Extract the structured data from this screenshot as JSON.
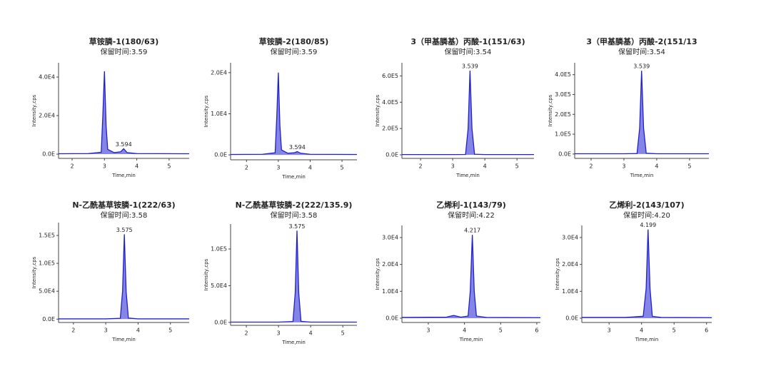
{
  "chart_data": [
    {
      "type": "area",
      "title": "草铵膦-1(180/63)",
      "subtitle": "保留时间:3.59",
      "x_label": "Time,min",
      "y_label": "Intensity,cps",
      "color": "#2020d0",
      "x": [
        1.58,
        2.5,
        2.9,
        2.95,
        3.0,
        3.05,
        3.1,
        3.3,
        3.5,
        3.594,
        3.7,
        4.0,
        5.62
      ],
      "values": [
        200,
        300,
        1000,
        20000,
        43000,
        15000,
        2500,
        800,
        1200,
        2800,
        800,
        300,
        200
      ],
      "annotations": [
        {
          "x": 3.594,
          "label": "3.594"
        }
      ],
      "xlim": [
        1.58,
        5.62
      ],
      "xticks": [
        2,
        3,
        4,
        5
      ],
      "ylim": [
        -2200,
        47400
      ],
      "yticks": [
        {
          "value": 0,
          "label": "0.0E"
        },
        {
          "value": 20000,
          "label": "2.0E4"
        },
        {
          "value": 40000,
          "label": "4.0E4"
        }
      ]
    },
    {
      "type": "area",
      "title": "草铵膦-2(180/85)",
      "subtitle": "保留时间:3.59",
      "x_label": "Time,min",
      "y_label": "Intensity,cps",
      "color": "#2020d0",
      "x": [
        1.5,
        2.5,
        2.9,
        2.95,
        3.0,
        3.05,
        3.1,
        3.3,
        3.5,
        3.594,
        3.7,
        4.0,
        5.47
      ],
      "values": [
        100,
        150,
        500,
        9000,
        20000,
        7000,
        1200,
        400,
        500,
        800,
        400,
        150,
        100
      ],
      "annotations": [
        {
          "x": 3.594,
          "label": "3.594"
        }
      ],
      "xlim": [
        1.5,
        5.47
      ],
      "xticks": [
        2,
        3,
        4,
        5
      ],
      "ylim": [
        -1200,
        22400
      ],
      "yticks": [
        {
          "value": 0,
          "label": "0.0E"
        },
        {
          "value": 10000,
          "label": "1.0E4"
        },
        {
          "value": 20000,
          "label": "2.0E4"
        }
      ]
    },
    {
      "type": "area",
      "title": "3（甲基膦基）丙酸-1(151/63)",
      "subtitle": "保留时间:3.54",
      "x_label": "Time,min",
      "y_label": "Intensity,cps",
      "color": "#2020d0",
      "x": [
        1.42,
        3.0,
        3.4,
        3.48,
        3.539,
        3.6,
        3.68,
        4.0,
        5.53
      ],
      "values": [
        2000,
        2000,
        3000,
        200000,
        640000,
        200000,
        5000,
        2000,
        2000
      ],
      "annotations": [
        {
          "x": 3.539,
          "label": "3.539"
        }
      ],
      "xlim": [
        1.42,
        5.53
      ],
      "xticks": [
        2,
        3,
        4,
        5
      ],
      "ylim": [
        -27000,
        700000
      ],
      "yticks": [
        {
          "value": 0,
          "label": "0.0E"
        },
        {
          "value": 200000,
          "label": "2.0E5"
        },
        {
          "value": 400000,
          "label": "4.0E5"
        },
        {
          "value": 600000,
          "label": "6.0E5"
        }
      ]
    },
    {
      "type": "area",
      "title": "3（甲基膦基）丙酸-2(151/13",
      "subtitle": "保留时间:3.54",
      "x_label": "Time,min",
      "y_label": "Intensity,cps",
      "color": "#2020d0",
      "x": [
        1.5,
        3.0,
        3.4,
        3.48,
        3.539,
        3.6,
        3.68,
        4.0,
        5.59
      ],
      "values": [
        1500,
        1500,
        2500,
        130000,
        420000,
        130000,
        4000,
        1500,
        1500
      ],
      "annotations": [
        {
          "x": 3.539,
          "label": "3.539"
        }
      ],
      "xlim": [
        1.5,
        5.59
      ],
      "xticks": [
        2,
        3,
        4,
        5
      ],
      "ylim": [
        -22000,
        460000
      ],
      "yticks": [
        {
          "value": 0,
          "label": "0.0E"
        },
        {
          "value": 100000,
          "label": "1.0E5"
        },
        {
          "value": 200000,
          "label": "2.0E5"
        },
        {
          "value": 300000,
          "label": "3.0E5"
        },
        {
          "value": 400000,
          "label": "4.0E5"
        }
      ]
    },
    {
      "type": "area",
      "title": "N-乙酰基草铵膦-1(222/63)",
      "subtitle": "保留时间:3.58",
      "x_label": "Time,min",
      "y_label": "Intensity,cps",
      "color": "#2020d0",
      "x": [
        1.54,
        3.0,
        3.45,
        3.52,
        3.575,
        3.63,
        3.7,
        4.0,
        5.58
      ],
      "values": [
        500,
        500,
        1500,
        50000,
        152000,
        50000,
        2000,
        500,
        500
      ],
      "annotations": [
        {
          "x": 3.575,
          "label": "3.575"
        }
      ],
      "xlim": [
        1.54,
        5.58
      ],
      "xticks": [
        2,
        3,
        4,
        5
      ],
      "ylim": [
        -6000,
        173000
      ],
      "yticks": [
        {
          "value": 0,
          "label": "0.0E"
        },
        {
          "value": 50000,
          "label": "5.0E4"
        },
        {
          "value": 100000,
          "label": "1.0E5"
        },
        {
          "value": 150000,
          "label": "1.5E5"
        }
      ]
    },
    {
      "type": "area",
      "title": "N-乙酰基草铵膦-2(222/135.9)",
      "subtitle": "保留时间:3.58",
      "x_label": "Time,min",
      "y_label": "Intensity,cps",
      "color": "#2020d0",
      "x": [
        1.51,
        3.0,
        3.45,
        3.52,
        3.575,
        3.63,
        3.7,
        4.0,
        5.44
      ],
      "values": [
        400,
        400,
        1200,
        40000,
        125000,
        40000,
        1500,
        400,
        400
      ],
      "annotations": [
        {
          "x": 3.575,
          "label": "3.575"
        }
      ],
      "xlim": [
        1.51,
        5.44
      ],
      "xticks": [
        2,
        3,
        4,
        5
      ],
      "ylim": [
        -4000,
        134000
      ],
      "yticks": [
        {
          "value": 0,
          "label": "0.0E"
        },
        {
          "value": 50000,
          "label": "5.0E4"
        },
        {
          "value": 100000,
          "label": "1.0E5"
        }
      ]
    },
    {
      "type": "area",
      "title": "乙烯利-1(143/79)",
      "subtitle": "保留时间:4.22",
      "x_label": "Time,min",
      "y_label": "Intensity,cps",
      "color": "#2020d0",
      "x": [
        2.27,
        3.5,
        3.7,
        3.9,
        4.1,
        4.16,
        4.217,
        4.27,
        4.33,
        4.6,
        6.1
      ],
      "values": [
        300,
        400,
        1000,
        400,
        800,
        10000,
        31000,
        10000,
        800,
        300,
        200
      ],
      "annotations": [
        {
          "x": 4.217,
          "label": "4.217"
        }
      ],
      "xlim": [
        2.27,
        6.1
      ],
      "xticks": [
        3,
        4,
        5,
        6
      ],
      "ylim": [
        -1600,
        34500
      ],
      "yticks": [
        {
          "value": 0,
          "label": "0.0E"
        },
        {
          "value": 10000,
          "label": "1.0E4"
        },
        {
          "value": 20000,
          "label": "2.0E4"
        },
        {
          "value": 30000,
          "label": "3.0E4"
        }
      ]
    },
    {
      "type": "area",
      "title": "乙烯利-2(143/107)",
      "subtitle": "保留时间:4.20",
      "x_label": "Time,min",
      "y_label": "Intensity,cps",
      "color": "#2020d0",
      "x": [
        2.16,
        3.5,
        4.05,
        4.14,
        4.199,
        4.26,
        4.33,
        4.6,
        6.16
      ],
      "values": [
        300,
        300,
        700,
        11000,
        33000,
        11000,
        700,
        300,
        200
      ],
      "annotations": [
        {
          "x": 4.199,
          "label": "4.199"
        }
      ],
      "xlim": [
        2.16,
        6.16
      ],
      "xticks": [
        3,
        4,
        5,
        6
      ],
      "ylim": [
        -1600,
        34500
      ],
      "yticks": [
        {
          "value": 0,
          "label": "0.0E"
        },
        {
          "value": 10000,
          "label": "1.0E4"
        },
        {
          "value": 20000,
          "label": "2.0E4"
        },
        {
          "value": 30000,
          "label": "3.0E4"
        }
      ]
    }
  ]
}
